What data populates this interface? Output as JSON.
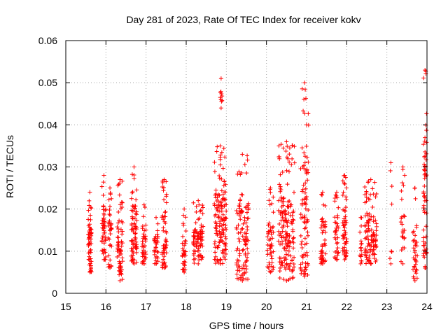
{
  "chart_data": {
    "type": "scatter",
    "title": "Day 281 of 2023, Rate Of TEC Index for receiver kokv",
    "xlabel": "GPS time / hours",
    "ylabel": "ROTI / TECUs",
    "xlim": [
      15,
      24
    ],
    "ylim": [
      0,
      0.06
    ],
    "xticks": [
      "15",
      "16",
      "17",
      "18",
      "19",
      "20",
      "21",
      "22",
      "23",
      "24"
    ],
    "yticks": [
      "0",
      "0.01",
      "0.02",
      "0.03",
      "0.04",
      "0.05",
      "0.06"
    ],
    "grid": true,
    "marker": "+",
    "color": "#ff0000",
    "clusters": [
      {
        "x": 15.6,
        "width": 0.08,
        "ymin": 0.005,
        "ymax": 0.024,
        "count": 55
      },
      {
        "x": 15.95,
        "width": 0.1,
        "ymin": 0.008,
        "ymax": 0.028,
        "count": 45
      },
      {
        "x": 16.1,
        "width": 0.08,
        "ymin": 0.006,
        "ymax": 0.025,
        "count": 35
      },
      {
        "x": 16.35,
        "width": 0.15,
        "ymin": 0.003,
        "ymax": 0.027,
        "count": 65
      },
      {
        "x": 16.7,
        "width": 0.15,
        "ymin": 0.007,
        "ymax": 0.03,
        "count": 75
      },
      {
        "x": 16.95,
        "width": 0.1,
        "ymin": 0.007,
        "ymax": 0.021,
        "count": 35
      },
      {
        "x": 17.25,
        "width": 0.1,
        "ymin": 0.007,
        "ymax": 0.018,
        "count": 30
      },
      {
        "x": 17.45,
        "width": 0.12,
        "ymin": 0.006,
        "ymax": 0.027,
        "count": 55
      },
      {
        "x": 17.95,
        "width": 0.1,
        "ymin": 0.005,
        "ymax": 0.02,
        "count": 35
      },
      {
        "x": 18.3,
        "width": 0.25,
        "ymin": 0.007,
        "ymax": 0.022,
        "count": 85
      },
      {
        "x": 18.85,
        "width": 0.3,
        "ymin": 0.007,
        "ymax": 0.035,
        "count": 140
      },
      {
        "x": 18.87,
        "width": 0.06,
        "ymin": 0.044,
        "ymax": 0.051,
        "count": 8
      },
      {
        "x": 19.4,
        "width": 0.3,
        "ymin": 0.003,
        "ymax": 0.033,
        "count": 110
      },
      {
        "x": 20.1,
        "width": 0.15,
        "ymin": 0.005,
        "ymax": 0.025,
        "count": 50
      },
      {
        "x": 20.5,
        "width": 0.4,
        "ymin": 0.003,
        "ymax": 0.036,
        "count": 170
      },
      {
        "x": 20.95,
        "width": 0.2,
        "ymin": 0.004,
        "ymax": 0.05,
        "count": 90
      },
      {
        "x": 21.4,
        "width": 0.15,
        "ymin": 0.007,
        "ymax": 0.024,
        "count": 45
      },
      {
        "x": 21.75,
        "width": 0.1,
        "ymin": 0.008,
        "ymax": 0.024,
        "count": 35
      },
      {
        "x": 21.95,
        "width": 0.1,
        "ymin": 0.008,
        "ymax": 0.028,
        "count": 55
      },
      {
        "x": 22.35,
        "width": 0.05,
        "ymin": 0.007,
        "ymax": 0.018,
        "count": 15
      },
      {
        "x": 22.6,
        "width": 0.3,
        "ymin": 0.007,
        "ymax": 0.027,
        "count": 110
      },
      {
        "x": 23.1,
        "width": 0.05,
        "ymin": 0.007,
        "ymax": 0.031,
        "count": 6
      },
      {
        "x": 23.4,
        "width": 0.1,
        "ymin": 0.007,
        "ymax": 0.03,
        "count": 25
      },
      {
        "x": 23.7,
        "width": 0.12,
        "ymin": 0.003,
        "ymax": 0.025,
        "count": 35
      },
      {
        "x": 23.95,
        "width": 0.08,
        "ymin": 0.006,
        "ymax": 0.053,
        "count": 60
      }
    ]
  }
}
